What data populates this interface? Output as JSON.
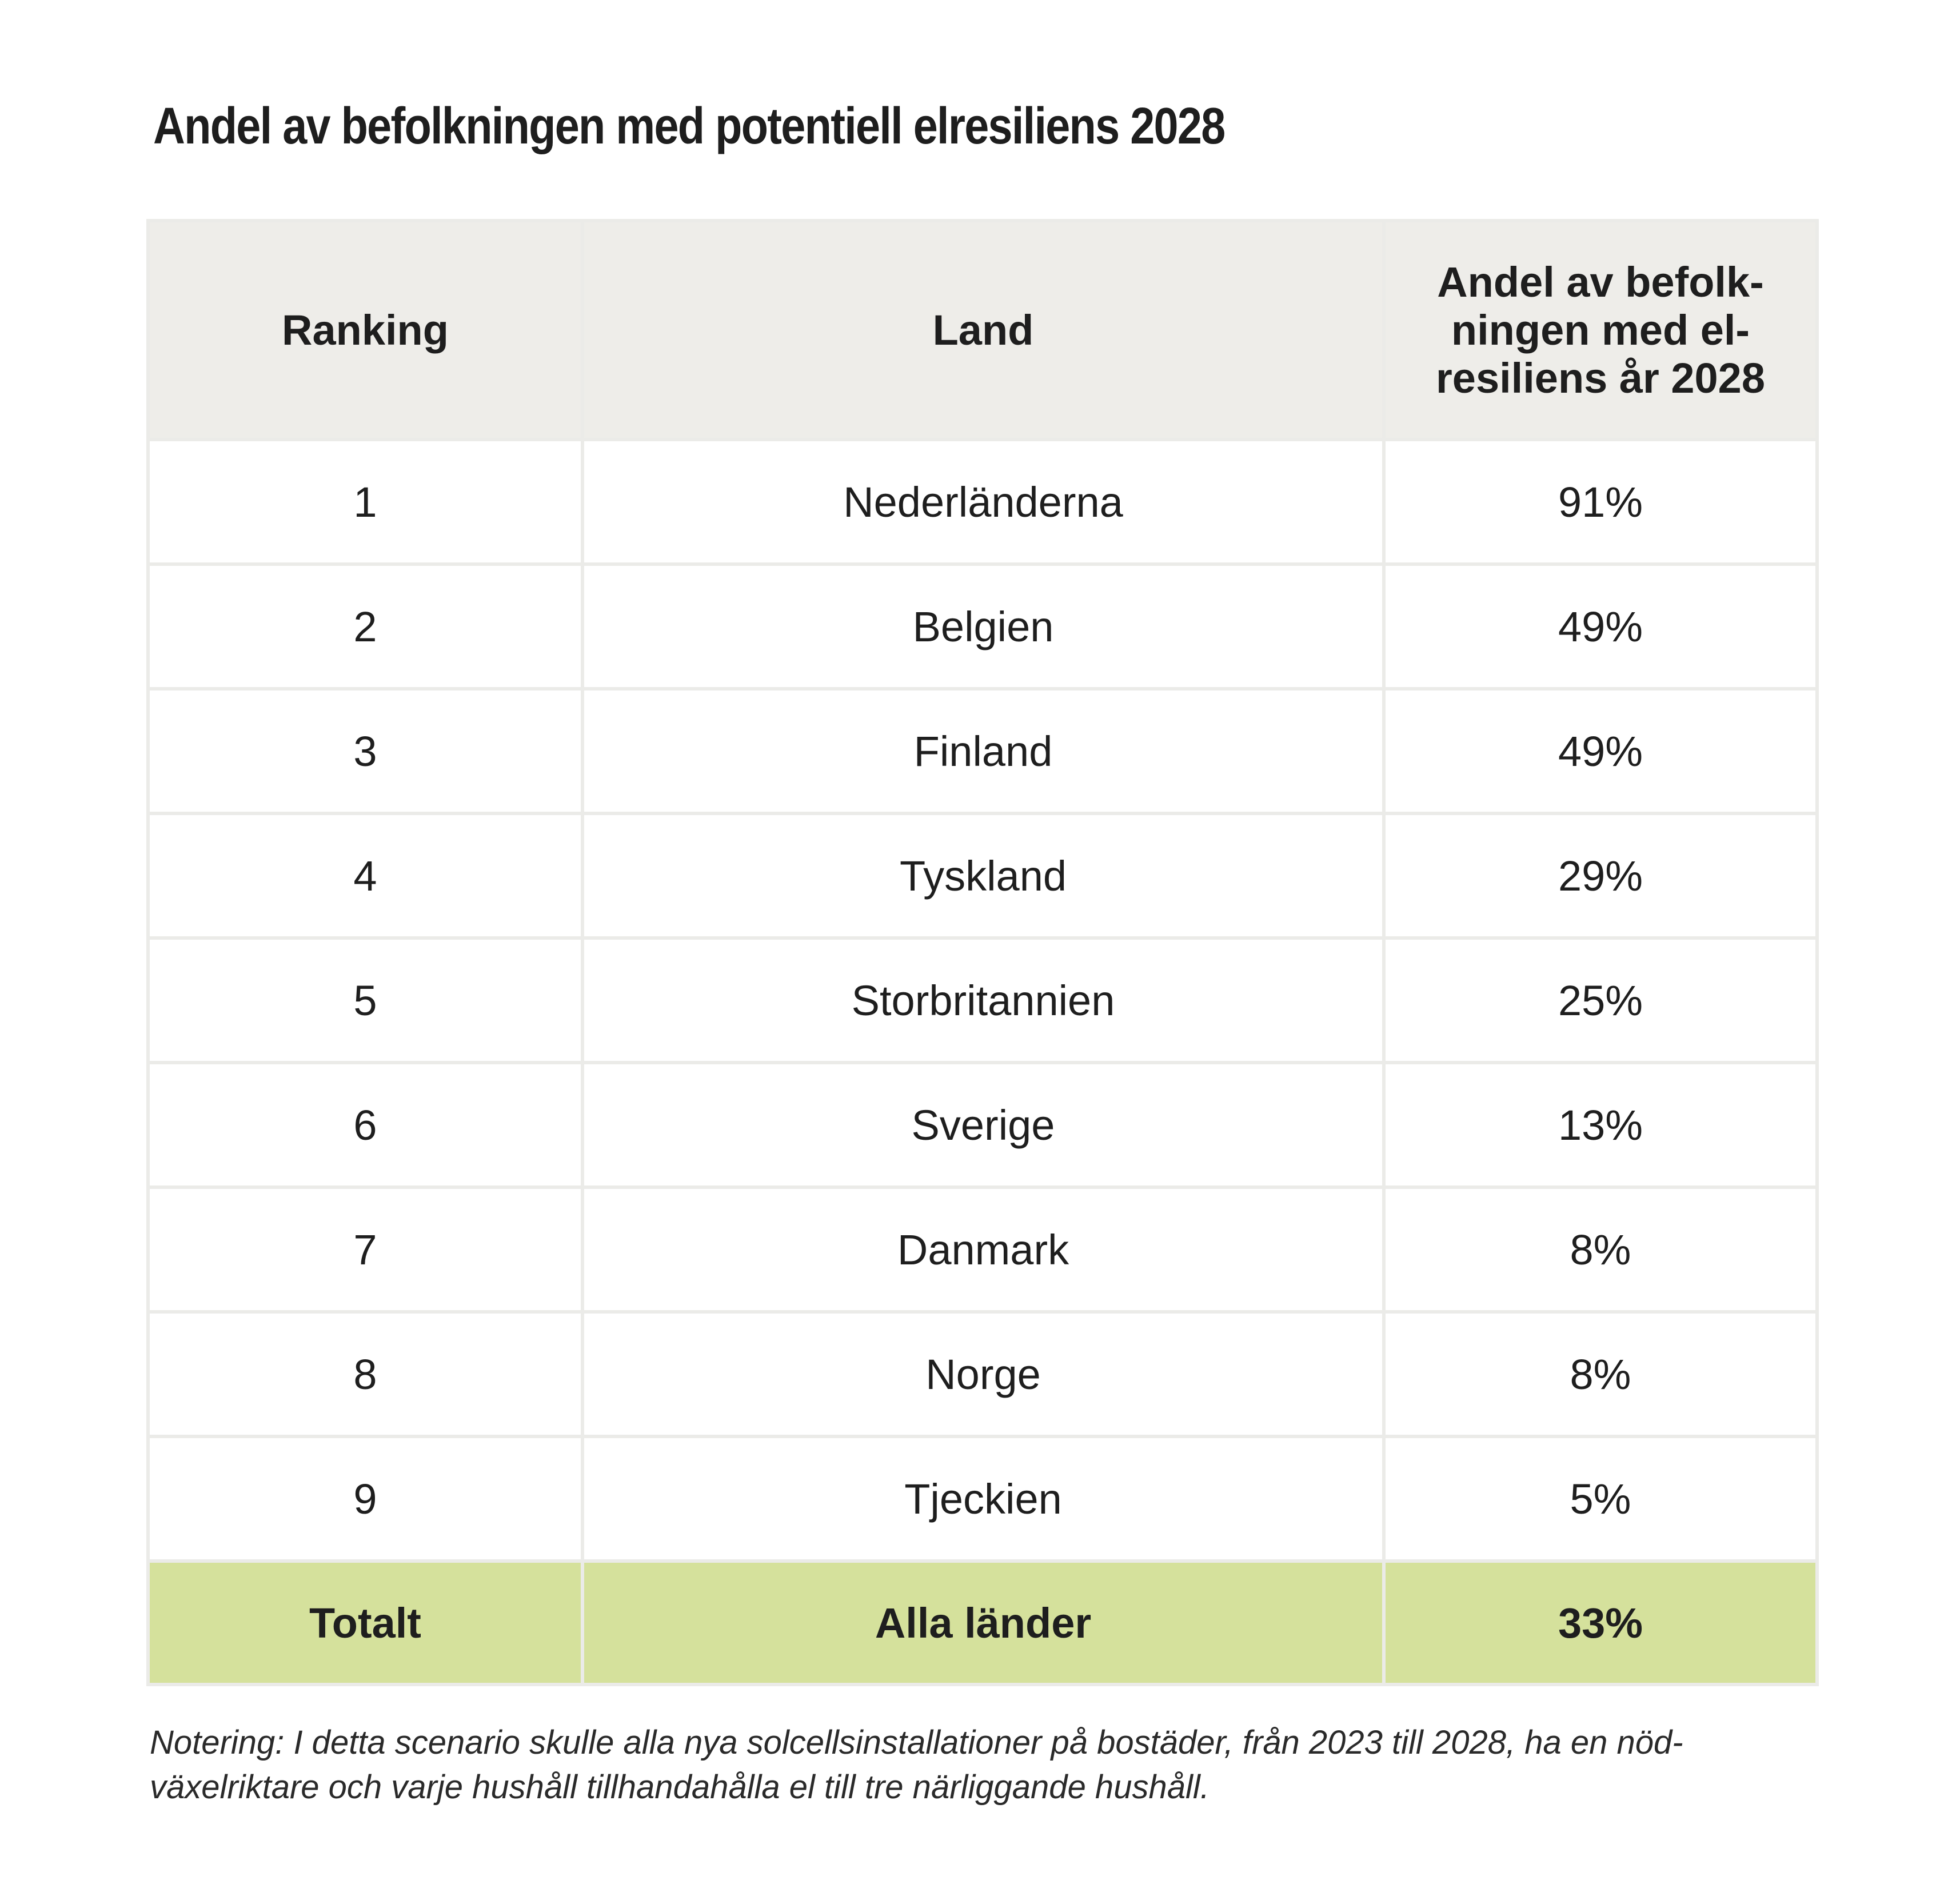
{
  "title": "Andel av befolkningen med potentiell elresiliens 2028",
  "table": {
    "headers": [
      "Ranking",
      "Land",
      "Andel av befolk-ningen med el-resiliens år 2028"
    ],
    "rows": [
      {
        "rank": "1",
        "country": "Nederländerna",
        "share": "91%"
      },
      {
        "rank": "2",
        "country": "Belgien",
        "share": "49%"
      },
      {
        "rank": "3",
        "country": "Finland",
        "share": "49%"
      },
      {
        "rank": "4",
        "country": "Tyskland",
        "share": "29%"
      },
      {
        "rank": "5",
        "country": "Storbritannien",
        "share": "25%"
      },
      {
        "rank": "6",
        "country": "Sverige",
        "share": "13%"
      },
      {
        "rank": "7",
        "country": "Danmark",
        "share": "8%"
      },
      {
        "rank": "8",
        "country": "Norge",
        "share": "8%"
      },
      {
        "rank": "9",
        "country": "Tjeckien",
        "share": "5%"
      }
    ],
    "total": {
      "rank": "Totalt",
      "country": "Alla länder",
      "share": "33%"
    }
  },
  "note": "Notering: I detta scenario skulle alla nya solcellsinstallationer på bostäder, från 2023 till 2028, ha en nöd-växelriktare och varje hushåll tillhandahålla el till tre närliggande hushåll.",
  "colors": {
    "header_bg": "#eeede9",
    "total_bg": "#d5e19c",
    "grid": "#ebebe8"
  }
}
